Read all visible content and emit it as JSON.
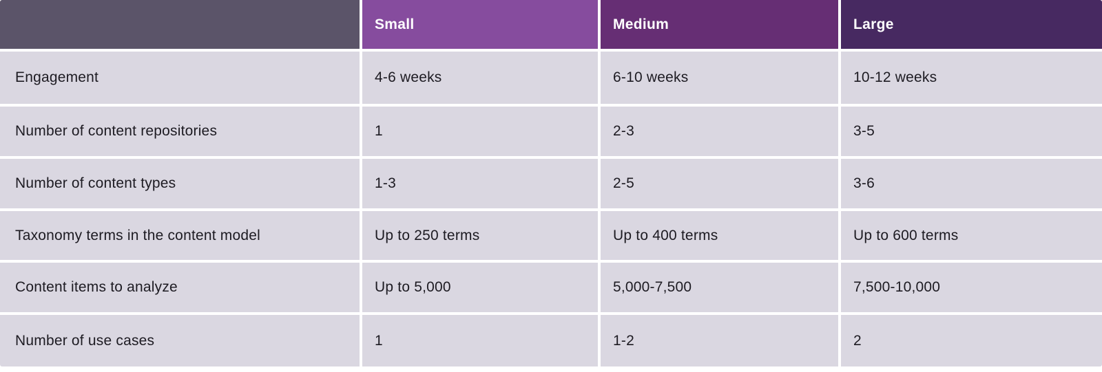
{
  "header": {
    "corner": "",
    "small": "Small",
    "medium": "Medium",
    "large": "Large"
  },
  "rows": [
    {
      "label": "Engagement",
      "small": "4-6 weeks",
      "medium": "6-10 weeks",
      "large": "10-12 weeks"
    },
    {
      "label": "Number of content repositories",
      "small": "1",
      "medium": "2-3",
      "large": "3-5"
    },
    {
      "label": "Number of content types",
      "small": "1-3",
      "medium": "2-5",
      "large": "3-6"
    },
    {
      "label": "Taxonomy terms in the content model",
      "small": "Up to 250 terms",
      "medium": "Up to 400 terms",
      "large": "Up to 600 terms"
    },
    {
      "label": "Content items to analyze",
      "small": "Up to 5,000",
      "medium": "5,000-7,500",
      "large": "7,500-10,000"
    },
    {
      "label": "Number of use cases",
      "small": "1",
      "medium": "1-2",
      "large": "2"
    }
  ],
  "colors": {
    "corner_header_bg": "#5b5469",
    "small_header_bg": "#864c9e",
    "medium_header_bg": "#662e74",
    "large_header_bg": "#472961",
    "body_cell_bg": "#dad7e1",
    "header_text": "#ffffff",
    "body_text": "#1d1b22",
    "divider": "#ffffff"
  },
  "chart_data": {
    "type": "table",
    "columns": [
      "",
      "Small",
      "Medium",
      "Large"
    ],
    "rows": [
      [
        "Engagement",
        "4-6 weeks",
        "6-10 weeks",
        "10-12 weeks"
      ],
      [
        "Number of content repositories",
        "1",
        "2-3",
        "3-5"
      ],
      [
        "Number of content types",
        "1-3",
        "2-5",
        "3-6"
      ],
      [
        "Taxonomy terms in the content model",
        "Up to 250 terms",
        "Up to 400 terms",
        "Up to 600 terms"
      ],
      [
        "Content items to analyze",
        "Up to 5,000",
        "5,000-7,500",
        "7,500-10,000"
      ],
      [
        "Number of use cases",
        "1",
        "1-2",
        "2"
      ]
    ],
    "title": "",
    "legend_position": "none",
    "grid": "white dividers between lavender cells"
  }
}
